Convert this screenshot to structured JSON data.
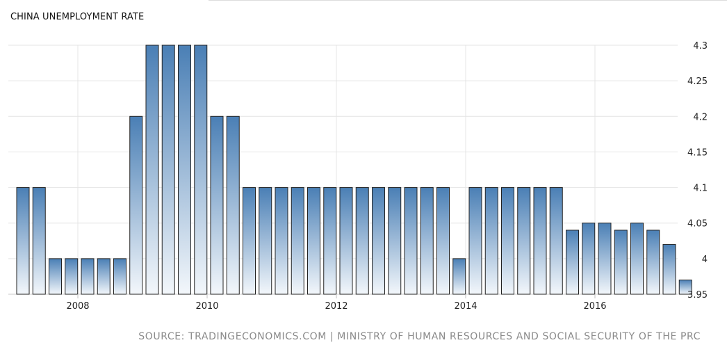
{
  "chart_data": {
    "type": "bar",
    "title": "CHINA UNEMPLOYMENT RATE",
    "xlabel": "",
    "ylabel": "",
    "series": [
      {
        "values": [
          4.1,
          4.1,
          4.0,
          4.0,
          4.0,
          4.0,
          4.0,
          4.2,
          4.3,
          4.3,
          4.3,
          4.3,
          4.2,
          4.2,
          4.1,
          4.1,
          4.1,
          4.1,
          4.1,
          4.1,
          4.1,
          4.1,
          4.1,
          4.1,
          4.1,
          4.1,
          4.1,
          4.0,
          4.1,
          4.1,
          4.1,
          4.1,
          4.1,
          4.1,
          4.04,
          4.05,
          4.05,
          4.04,
          4.05,
          4.04,
          4.02,
          3.97
        ]
      }
    ],
    "x_ticks": [
      "2008",
      "2010",
      "2012",
      "2014",
      "2016"
    ],
    "y_ticks": [
      "3.95",
      "4",
      "4.05",
      "4.1",
      "4.15",
      "4.2",
      "4.25",
      "4.3"
    ],
    "ylim": [
      3.95,
      4.3
    ],
    "grid": true,
    "y_axis_side": "right",
    "bar_color_top": "#4a7fb5",
    "bar_color_bottom": "#f3f7fb",
    "bar_stroke": "#222222"
  },
  "source": "SOURCE: TRADINGECONOMICS.COM | MINISTRY OF HUMAN RESOURCES AND SOCIAL SECURITY OF THE PRC"
}
